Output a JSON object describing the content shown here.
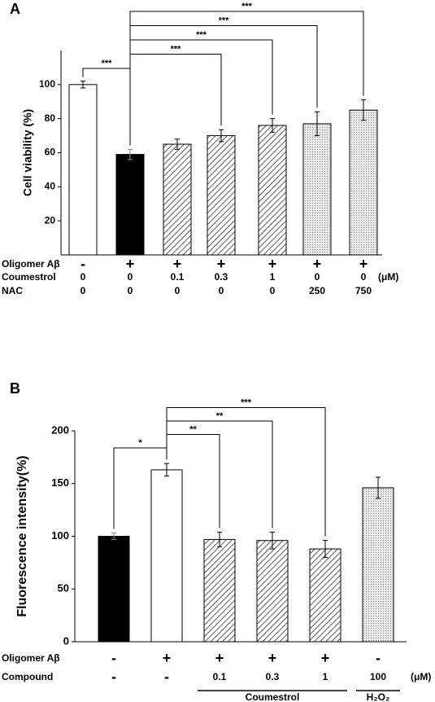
{
  "chart_data": [
    {
      "type": "bar",
      "panel": "A",
      "ylabel": "Cell viability (%)",
      "values": [
        100,
        59,
        65,
        70,
        76,
        77,
        85
      ],
      "errors": [
        2,
        3,
        3,
        3.5,
        4,
        7,
        6
      ],
      "fills": [
        "white",
        "black",
        "hatch",
        "hatch",
        "hatch",
        "dots",
        "dots"
      ],
      "ylim": [
        0,
        120
      ],
      "yticks": [
        20,
        40,
        60,
        80,
        100
      ],
      "conditions": [
        {
          "name": "Oligomer Aβ",
          "values": [
            "-",
            "+",
            "+",
            "+",
            "+",
            "+",
            "+"
          ]
        },
        {
          "name": "Coumestrol",
          "values": [
            "0",
            "0",
            "0.1",
            "0.3",
            "1",
            "0",
            "0"
          ]
        },
        {
          "name": "NAC",
          "values": [
            "0",
            "0",
            "0",
            "0",
            "0",
            "250",
            "750"
          ]
        }
      ],
      "unit": "(μM)",
      "unit_row": 1,
      "significance": [
        {
          "pair": [
            0,
            1
          ],
          "label": "***"
        },
        {
          "pair": [
            1,
            3
          ],
          "label": "***"
        },
        {
          "pair": [
            1,
            4
          ],
          "label": "***"
        },
        {
          "pair": [
            1,
            5
          ],
          "label": "***"
        },
        {
          "pair": [
            1,
            6
          ],
          "label": "***"
        }
      ]
    },
    {
      "type": "bar",
      "panel": "B",
      "ylabel": "Fluorescence intensity(%)",
      "values": [
        100,
        163,
        97,
        96,
        88,
        146
      ],
      "errors": [
        3,
        6,
        7,
        8,
        8,
        10
      ],
      "fills": [
        "black",
        "white",
        "hatch",
        "hatch",
        "hatch",
        "dots"
      ],
      "ylim": [
        0,
        200
      ],
      "yticks": [
        0,
        50,
        100,
        150,
        200
      ],
      "conditions": [
        {
          "name": "Oligomer Aβ",
          "values": [
            "-",
            "+",
            "+",
            "+",
            "+",
            "-"
          ]
        },
        {
          "name": "Compound",
          "values": [
            "-",
            "-",
            "0.1",
            "0.3",
            "1",
            "100"
          ]
        }
      ],
      "unit": "(μM)",
      "unit_row": 1,
      "groups": [
        {
          "label": "Coumestrol",
          "span": [
            2,
            4
          ]
        },
        {
          "label": "H₂O₂",
          "span": [
            5,
            5
          ]
        }
      ],
      "significance": [
        {
          "pair": [
            0,
            1
          ],
          "label": "*"
        },
        {
          "pair": [
            1,
            2
          ],
          "label": "**"
        },
        {
          "pair": [
            1,
            3
          ],
          "label": "**"
        },
        {
          "pair": [
            1,
            4
          ],
          "label": "***"
        }
      ]
    }
  ]
}
